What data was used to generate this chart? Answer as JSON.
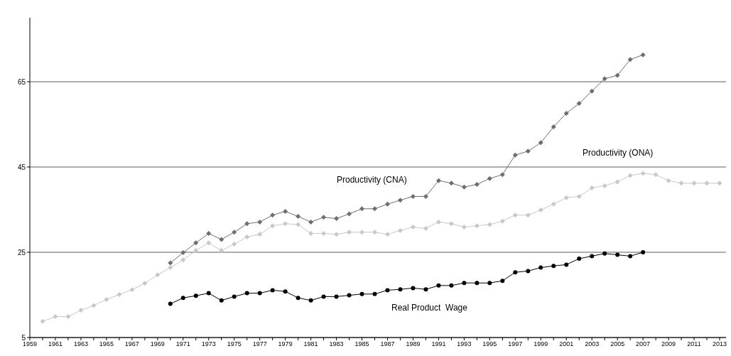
{
  "chart_data": {
    "type": "line",
    "xlim": [
      1959,
      2013.5
    ],
    "ylim": [
      5,
      80
    ],
    "yticks": [
      5,
      25,
      45,
      65
    ],
    "xticks": [
      1959,
      {
        "value": 1960,
        "label": null
      },
      1961,
      {
        "value": 1962,
        "label": null
      },
      1963,
      {
        "value": 1964,
        "label": null
      },
      1965,
      {
        "value": 1966,
        "label": null
      },
      1967,
      {
        "value": 1968,
        "label": null
      },
      1969,
      {
        "value": 1970,
        "label": null
      },
      1971,
      {
        "value": 1972,
        "label": null
      },
      1973,
      {
        "value": 1974,
        "label": null
      },
      1975,
      {
        "value": 1976,
        "label": null
      },
      1977,
      {
        "value": 1978,
        "label": null
      },
      1979,
      {
        "value": 1980,
        "label": null
      },
      1981,
      {
        "value": 1982,
        "label": null
      },
      1983,
      {
        "value": 1984,
        "label": null
      },
      1985,
      {
        "value": 1986,
        "label": null
      },
      1987,
      {
        "value": 1988,
        "label": null
      },
      1989,
      {
        "value": 1990,
        "label": null
      },
      1991,
      {
        "value": 1992,
        "label": null
      },
      1993,
      {
        "value": 1994,
        "label": null
      },
      1995,
      {
        "value": 1996,
        "label": null
      },
      1997,
      {
        "value": 1998,
        "label": null
      },
      1999,
      {
        "value": 2000,
        "label": null
      },
      2001,
      {
        "value": 2002,
        "label": null
      },
      2003,
      {
        "value": 2004,
        "label": null
      },
      2005,
      {
        "value": 2006,
        "label": null
      },
      2007,
      {
        "value": 2008,
        "label": null
      },
      2009,
      {
        "value": 2010,
        "label": null
      },
      2011,
      {
        "value": 2012,
        "label": null
      },
      2013
    ],
    "grid": "y",
    "legend": false,
    "line_style": "solid",
    "series": [
      {
        "name": "Productivity (CNA)",
        "color": "#6e6e6e",
        "marker": "diamond",
        "x": [
          1970,
          1971,
          1972,
          1973,
          1974,
          1975,
          1976,
          1977,
          1978,
          1979,
          1980,
          1981,
          1982,
          1983,
          1984,
          1985,
          1986,
          1987,
          1988,
          1989,
          1990,
          1991,
          1992,
          1993,
          1994,
          1995,
          1996,
          1997,
          1998,
          1999,
          2000,
          2001,
          2002,
          2003,
          2004,
          2005,
          2006,
          2007
        ],
        "values": [
          22.5,
          24.9,
          27.2,
          29.4,
          28.0,
          29.7,
          31.7,
          32.1,
          33.7,
          34.6,
          33.4,
          32.1,
          33.2,
          32.9,
          34.0,
          35.2,
          35.2,
          36.3,
          37.2,
          38.1,
          38.1,
          41.8,
          41.2,
          40.3,
          40.9,
          42.3,
          43.2,
          47.8,
          48.7,
          50.7,
          54.4,
          57.6,
          59.9,
          62.8,
          65.7,
          66.5,
          70.2,
          71.3
        ]
      },
      {
        "name": "Productivity (ONA)",
        "color": "#c8c8c8",
        "marker": "diamond",
        "x": [
          1960,
          1961,
          1962,
          1963,
          1964,
          1965,
          1966,
          1967,
          1968,
          1969,
          1970,
          1971,
          1972,
          1973,
          1974,
          1975,
          1976,
          1977,
          1978,
          1979,
          1980,
          1981,
          1982,
          1983,
          1984,
          1985,
          1986,
          1987,
          1988,
          1989,
          1990,
          1991,
          1992,
          1993,
          1994,
          1995,
          1996,
          1997,
          1998,
          1999,
          2000,
          2001,
          2002,
          2003,
          2004,
          2005,
          2006,
          2007,
          2008,
          2009,
          2010,
          2011,
          2012,
          2013
        ],
        "values": [
          8.8,
          9.9,
          9.9,
          11.4,
          12.5,
          13.9,
          15.1,
          16.2,
          17.7,
          19.7,
          21.4,
          23.2,
          25.4,
          27.2,
          25.4,
          26.9,
          28.6,
          29.2,
          31.2,
          31.7,
          31.5,
          29.4,
          29.4,
          29.2,
          29.7,
          29.7,
          29.7,
          29.2,
          30.1,
          30.9,
          30.6,
          32.1,
          31.7,
          30.9,
          31.2,
          31.5,
          32.3,
          33.7,
          33.7,
          34.9,
          36.3,
          37.8,
          38.1,
          40.1,
          40.6,
          41.5,
          43.0,
          43.5,
          43.2,
          41.8,
          41.2,
          41.2,
          41.2,
          41.2
        ]
      },
      {
        "name": "Real Product  Wage",
        "color": "#000000",
        "marker": "circle",
        "x": [
          1970,
          1971,
          1972,
          1973,
          1974,
          1975,
          1976,
          1977,
          1978,
          1979,
          1980,
          1981,
          1982,
          1983,
          1984,
          1985,
          1986,
          1987,
          1988,
          1989,
          1990,
          1991,
          1992,
          1993,
          1994,
          1995,
          1996,
          1997,
          1998,
          1999,
          2000,
          2001,
          2002,
          2003,
          2004,
          2005,
          2006,
          2007
        ],
        "values": [
          12.9,
          14.3,
          14.8,
          15.4,
          13.7,
          14.6,
          15.4,
          15.4,
          16.1,
          15.8,
          14.3,
          13.7,
          14.6,
          14.6,
          14.9,
          15.2,
          15.2,
          16.1,
          16.3,
          16.6,
          16.3,
          17.2,
          17.2,
          17.8,
          17.8,
          17.8,
          18.3,
          20.3,
          20.6,
          21.4,
          21.8,
          22.1,
          23.5,
          24.1,
          24.7,
          24.4,
          24.1,
          25.0
        ]
      }
    ]
  }
}
